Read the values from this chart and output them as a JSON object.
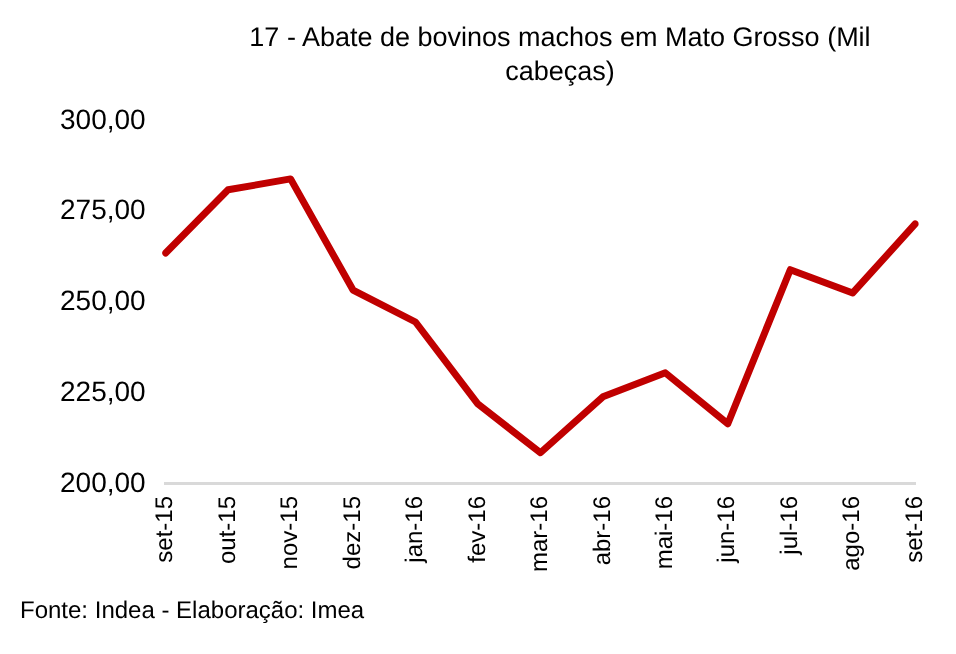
{
  "chart_data": {
    "type": "line",
    "title": "17 - Abate de bovinos machos em Mato Grosso (Mil cabeças)",
    "categories": [
      "set-15",
      "out-15",
      "nov-15",
      "dez-15",
      "jan-16",
      "fev-16",
      "mar-16",
      "abr-16",
      "mai-16",
      "jun-16",
      "jul-16",
      "ago-16",
      "set-16"
    ],
    "series": [
      {
        "color": "#c00000",
        "values": [
          263.6,
          281,
          284,
          253.4,
          244.6,
          222,
          208.6,
          224,
          230.6,
          216.6,
          259,
          252.6,
          271.6
        ]
      }
    ],
    "ylim": [
      200,
      300
    ],
    "yticks": [
      {
        "value": 200,
        "label": "200,00"
      },
      {
        "value": 225,
        "label": "225,00"
      },
      {
        "value": 250,
        "label": "250,00"
      },
      {
        "value": 275,
        "label": "275,00"
      },
      {
        "value": 300,
        "label": "300,00"
      }
    ],
    "grid": false,
    "legend": false,
    "marker": "none",
    "line_style": "solid",
    "annotations": [
      "Fonte: Indea - Elaboração: Imea"
    ]
  }
}
